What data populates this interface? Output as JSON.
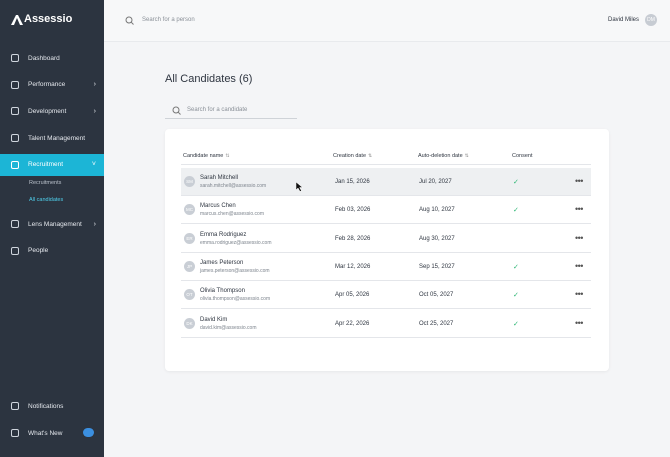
{
  "brand": "Assessio",
  "sidebar": {
    "items": [
      {
        "label": "Dashboard",
        "chevron": false
      },
      {
        "label": "Performance",
        "chevron": true
      },
      {
        "label": "Development",
        "chevron": true
      },
      {
        "label": "Talent Management",
        "chevron": false
      },
      {
        "label": "Recruitment",
        "chevron": true,
        "active": true
      }
    ],
    "subitems": [
      {
        "label": "Recruitments",
        "active": false
      },
      {
        "label": "All candidates",
        "active": true
      }
    ],
    "items2": [
      {
        "label": "Lens Management",
        "chevron": true
      },
      {
        "label": "People",
        "chevron": false
      }
    ],
    "bottom": [
      {
        "label": "Notifications"
      },
      {
        "label": "What's New"
      }
    ]
  },
  "topbar": {
    "search_placeholder": "Search for a person",
    "user_name": "David Miles",
    "user_initials": "DM"
  },
  "main": {
    "title": "All Candidates (6)",
    "search_placeholder": "Search for a candidate",
    "table": {
      "headers": [
        "Candidate name",
        "Creation date",
        "Auto-deletion date",
        "Consent"
      ],
      "rows": [
        {
          "initials": "SM",
          "name": "Sarah Mitchell",
          "email": "sarah.mitchell@assessio.com",
          "created": "Jan 15, 2026",
          "deletion": "Jul 20, 2027",
          "consent": true
        },
        {
          "initials": "MC",
          "name": "Marcus Chen",
          "email": "marcus.chen@assessio.com",
          "created": "Feb 03, 2026",
          "deletion": "Aug 10, 2027",
          "consent": true
        },
        {
          "initials": "ER",
          "name": "Emma Rodriguez",
          "email": "emma.rodriguez@assessio.com",
          "created": "Feb 28, 2026",
          "deletion": "Aug 30, 2027",
          "consent": false
        },
        {
          "initials": "JP",
          "name": "James Peterson",
          "email": "james.peterson@assessio.com",
          "created": "Mar 12, 2026",
          "deletion": "Sep 15, 2027",
          "consent": true
        },
        {
          "initials": "OT",
          "name": "Olivia Thompson",
          "email": "olivia.thompson@assessio.com",
          "created": "Apr 05, 2026",
          "deletion": "Oct 05, 2027",
          "consent": true
        },
        {
          "initials": "DK",
          "name": "David Kim",
          "email": "david.kim@assessio.com",
          "created": "Apr 22, 2026",
          "deletion": "Oct 25, 2027",
          "consent": true
        }
      ]
    }
  }
}
